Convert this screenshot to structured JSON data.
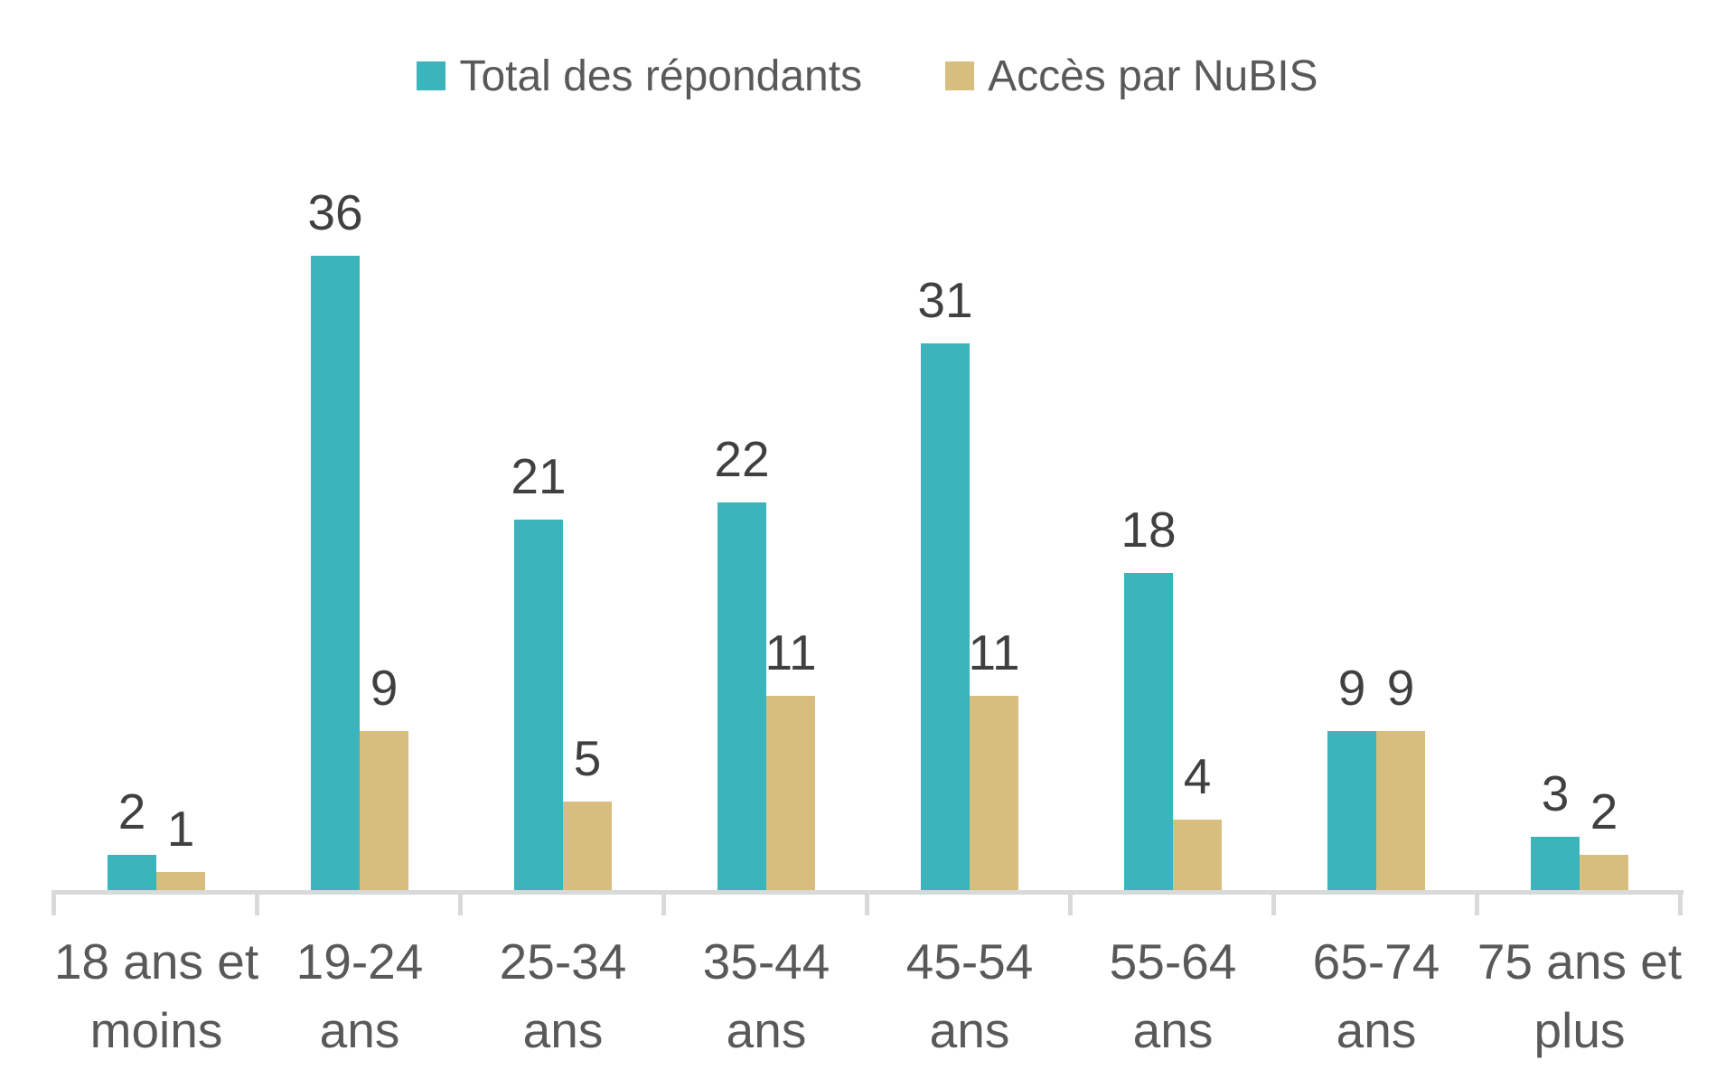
{
  "chart_data": {
    "type": "bar",
    "title": "",
    "categories": [
      "18 ans et moins",
      "19-24 ans",
      "25-34 ans",
      "35-44 ans",
      "45-54 ans",
      "55-64 ans",
      "65-74 ans",
      "75 ans et plus"
    ],
    "categories_lines": [
      [
        "18 ans et",
        "moins"
      ],
      [
        "19-24",
        "ans"
      ],
      [
        "25-34",
        "ans"
      ],
      [
        "35-44",
        "ans"
      ],
      [
        "45-54",
        "ans"
      ],
      [
        "55-64",
        "ans"
      ],
      [
        "65-74",
        "ans"
      ],
      [
        "75 ans et",
        "plus"
      ]
    ],
    "series": [
      {
        "name": "Total des répondants",
        "color": "#3BB4BB",
        "values": [
          2,
          36,
          21,
          22,
          31,
          18,
          9,
          3
        ]
      },
      {
        "name": "Accès par NuBIS",
        "color": "#D8BE7E",
        "values": [
          1,
          9,
          5,
          11,
          11,
          4,
          9,
          2
        ]
      }
    ],
    "ylim": [
      0,
      36
    ],
    "grid": false,
    "data_labels": true,
    "legend_position": "top-center",
    "xlabel": "",
    "ylabel": "",
    "axis_color": "#D9D9D9",
    "data_label_color": "#404040",
    "category_label_color": "#595959"
  }
}
